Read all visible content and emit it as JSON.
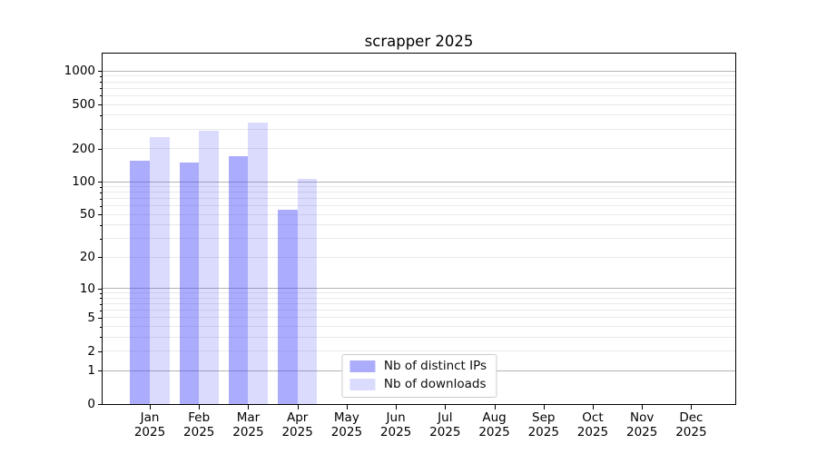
{
  "title": "scrapper 2025",
  "chart_data": {
    "type": "bar",
    "title": "scrapper 2025",
    "xlabel": "",
    "ylabel": "",
    "yscale": "symlog (position proportional to log10(1+value))",
    "ylim": [
      0,
      1100
    ],
    "grid": "horizontal, major lines at powers of 10, faint minor lines at 2-9 per decade",
    "legend_position": "lower center",
    "y_ticks": [
      0,
      1,
      2,
      5,
      10,
      20,
      50,
      100,
      200,
      500,
      1000
    ],
    "y_major_ticks": [
      1,
      10,
      100,
      1000
    ],
    "categories": [
      "Jan 2025",
      "Feb 2025",
      "Mar 2025",
      "Apr 2025",
      "May 2025",
      "Jun 2025",
      "Jul 2025",
      "Aug 2025",
      "Sep 2025",
      "Oct 2025",
      "Nov 2025",
      "Dec 2025"
    ],
    "series": [
      {
        "name": "Nb of distinct IPs",
        "color": "rgba(75,75,250,0.46)",
        "values": [
          155,
          148,
          172,
          55,
          0,
          0,
          0,
          0,
          0,
          0,
          0,
          0
        ]
      },
      {
        "name": "Nb of downloads",
        "color": "rgba(75,75,250,0.20)",
        "values": [
          252,
          291,
          341,
          107,
          0,
          0,
          0,
          0,
          0,
          0,
          0,
          0
        ]
      }
    ]
  },
  "colors": {
    "distinct_ips_bar": "rgba(75,75,250,0.46)",
    "downloads_bar": "rgba(75,75,250,0.20)",
    "major_gridline": "#b3b3b3",
    "minor_gridline": "#e9e9e9",
    "legend_border": "#cccccc",
    "axis": "#000000"
  }
}
